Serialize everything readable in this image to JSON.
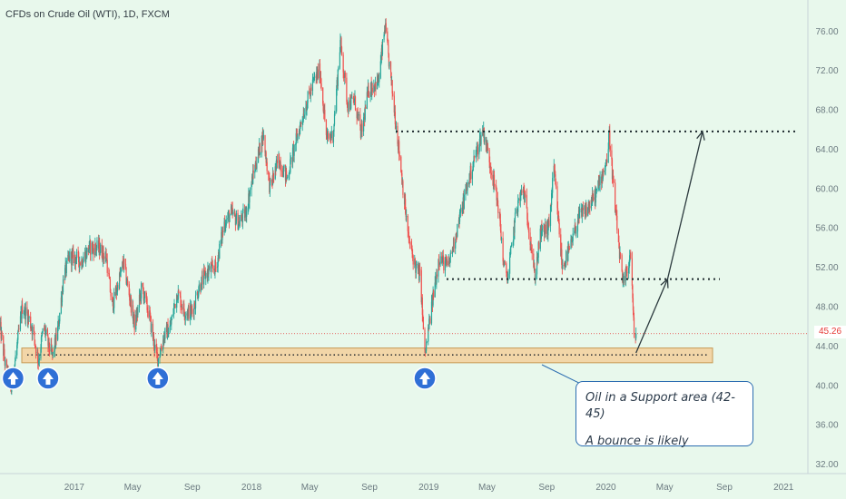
{
  "chart_data": {
    "type": "candlestick",
    "title": "CFDs on Crude Oil (WTI), 1D, FXCM",
    "x_tick_labels": [
      "2017",
      "May",
      "Sep",
      "2018",
      "May",
      "Sep",
      "2019",
      "May",
      "Sep",
      "2020",
      "May",
      "Sep",
      "2021"
    ],
    "y_ticks": [
      32,
      36,
      40,
      44,
      48,
      52,
      56,
      60,
      64,
      68,
      72,
      76
    ],
    "y_tick_labels": [
      "32.00",
      "36.00",
      "40.00",
      "44.00",
      "48.00",
      "52.00",
      "56.00",
      "60.00",
      "64.00",
      "68.00",
      "72.00",
      "76.00"
    ],
    "ylim": [
      31.5,
      77.5
    ],
    "xlim": [
      "2016-08-01",
      "2021-02-20"
    ],
    "last_price": 45.26,
    "last_price_label": "45.26",
    "colors": {
      "up": "#26a69a",
      "down": "#ef5350",
      "background": "#e8f8ec",
      "annotation": "#2b3a4a"
    },
    "price_path": [
      [
        "2016-08-01",
        46
      ],
      [
        "2016-08-12",
        42
      ],
      [
        "2016-08-24",
        39.5
      ],
      [
        "2016-09-05",
        44
      ],
      [
        "2016-09-16",
        48
      ],
      [
        "2016-09-28",
        47
      ],
      [
        "2016-10-08",
        45.5
      ],
      [
        "2016-10-19",
        42.5
      ],
      [
        "2016-10-30",
        46
      ],
      [
        "2016-11-09",
        44
      ],
      [
        "2016-11-18",
        43
      ],
      [
        "2016-11-29",
        46
      ],
      [
        "2016-12-10",
        51
      ],
      [
        "2016-12-22",
        53
      ],
      [
        "2017-01-03",
        53
      ],
      [
        "2017-01-15",
        52.5
      ],
      [
        "2017-02-01",
        54
      ],
      [
        "2017-02-20",
        54
      ],
      [
        "2017-03-08",
        53
      ],
      [
        "2017-03-20",
        48
      ],
      [
        "2017-03-31",
        50
      ],
      [
        "2017-04-12",
        52.5
      ],
      [
        "2017-04-25",
        49
      ],
      [
        "2017-05-06",
        46
      ],
      [
        "2017-05-20",
        50
      ],
      [
        "2017-06-05",
        47
      ],
      [
        "2017-06-15",
        44
      ],
      [
        "2017-06-22",
        42.6
      ],
      [
        "2017-07-05",
        45
      ],
      [
        "2017-07-18",
        46
      ],
      [
        "2017-08-01",
        49.5
      ],
      [
        "2017-08-16",
        47.5
      ],
      [
        "2017-09-01",
        47.5
      ],
      [
        "2017-09-15",
        50
      ],
      [
        "2017-10-01",
        51.5
      ],
      [
        "2017-10-20",
        52
      ],
      [
        "2017-11-06",
        56.5
      ],
      [
        "2017-11-20",
        57.5
      ],
      [
        "2017-12-06",
        56.5
      ],
      [
        "2017-12-20",
        57.5
      ],
      [
        "2018-01-05",
        61.5
      ],
      [
        "2018-01-25",
        65.5
      ],
      [
        "2018-02-08",
        60
      ],
      [
        "2018-02-26",
        63
      ],
      [
        "2018-03-15",
        61
      ],
      [
        "2018-04-01",
        64.5
      ],
      [
        "2018-04-20",
        68
      ],
      [
        "2018-05-10",
        71
      ],
      [
        "2018-05-22",
        72
      ],
      [
        "2018-06-05",
        65
      ],
      [
        "2018-06-18",
        65.5
      ],
      [
        "2018-07-03",
        75
      ],
      [
        "2018-07-18",
        68.5
      ],
      [
        "2018-08-01",
        69
      ],
      [
        "2018-08-15",
        65.5
      ],
      [
        "2018-08-30",
        70
      ],
      [
        "2018-09-20",
        71
      ],
      [
        "2018-10-03",
        76.5
      ],
      [
        "2018-10-20",
        69
      ],
      [
        "2018-11-05",
        62
      ],
      [
        "2018-11-20",
        55
      ],
      [
        "2018-12-05",
        52
      ],
      [
        "2018-12-15",
        51
      ],
      [
        "2018-12-24",
        43
      ],
      [
        "2019-01-07",
        48
      ],
      [
        "2019-01-22",
        53
      ],
      [
        "2019-02-10",
        52
      ],
      [
        "2019-03-01",
        56
      ],
      [
        "2019-03-20",
        60
      ],
      [
        "2019-04-05",
        63
      ],
      [
        "2019-04-23",
        66
      ],
      [
        "2019-05-10",
        62
      ],
      [
        "2019-05-25",
        58
      ],
      [
        "2019-06-05",
        52
      ],
      [
        "2019-06-13",
        51
      ],
      [
        "2019-07-01",
        58
      ],
      [
        "2019-07-15",
        60
      ],
      [
        "2019-08-01",
        54
      ],
      [
        "2019-08-07",
        51
      ],
      [
        "2019-08-20",
        55.5
      ],
      [
        "2019-09-05",
        56
      ],
      [
        "2019-09-16",
        62
      ],
      [
        "2019-10-03",
        52
      ],
      [
        "2019-10-20",
        54
      ],
      [
        "2019-11-05",
        57
      ],
      [
        "2019-11-25",
        58
      ],
      [
        "2019-12-12",
        59.5
      ],
      [
        "2020-01-03",
        63
      ],
      [
        "2020-01-08",
        65.5
      ],
      [
        "2020-01-20",
        58
      ],
      [
        "2020-02-05",
        50
      ],
      [
        "2020-02-15",
        52
      ],
      [
        "2020-02-21",
        53.5
      ],
      [
        "2020-02-28",
        45
      ],
      [
        "2020-03-03",
        45.26
      ]
    ],
    "annotations": {
      "resistance_level": 65.8,
      "mid_level": 50.8,
      "support_zone": [
        42.3,
        43.8
      ],
      "support_dotted_level": 43.1,
      "arrow_marks": [
        "2016-08-28",
        "2016-11-08",
        "2017-06-22",
        "2018-12-24"
      ],
      "projection": [
        [
          "2020-03-03",
          43.3
        ],
        [
          "2020-05-07",
          50.8
        ],
        [
          "2020-07-18",
          65.8
        ]
      ],
      "callout_lines": [
        "Oil in a Support area (42-45)",
        "A bounce is likely"
      ]
    }
  }
}
